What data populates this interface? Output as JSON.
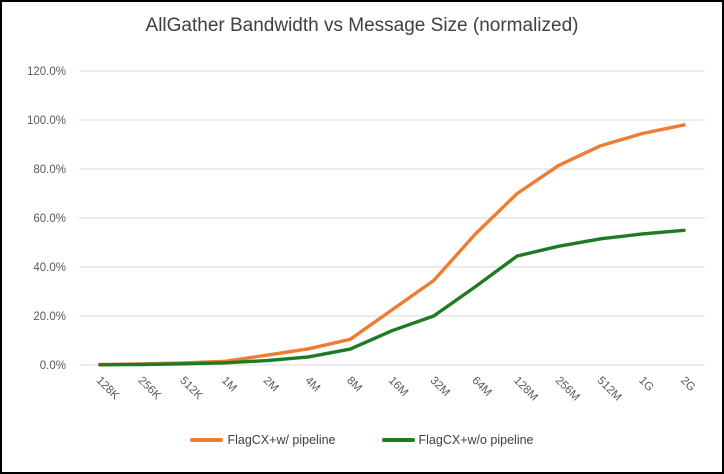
{
  "chart_data": {
    "type": "line",
    "title": "AllGather Bandwidth vs Message Size (normalized)",
    "categories": [
      "128K",
      "256K",
      "512K",
      "1M",
      "2M",
      "4M",
      "8M",
      "16M",
      "32M",
      "64M",
      "128M",
      "256M",
      "512M",
      "1G",
      "2G"
    ],
    "series": [
      {
        "name": "FlagCX+w/ pipeline",
        "color": "#ED7D31",
        "values": [
          0.2,
          0.4,
          0.8,
          1.5,
          4.0,
          6.6,
          10.5,
          22.5,
          34.5,
          53.5,
          70.0,
          81.5,
          89.5,
          94.5,
          98.0
        ]
      },
      {
        "name": "FlagCX+w/o pipeline",
        "color": "#1E7B24",
        "values": [
          0.1,
          0.2,
          0.5,
          0.9,
          1.8,
          3.3,
          6.5,
          14.0,
          20.0,
          32.0,
          44.5,
          48.5,
          51.5,
          53.5,
          55.0
        ]
      }
    ],
    "ylim": [
      0,
      120
    ],
    "ytick_step": 20,
    "ytick_labels": [
      "0.0%",
      "20.0%",
      "40.0%",
      "60.0%",
      "80.0%",
      "100.0%",
      "120.0%"
    ],
    "xlabel": "",
    "ylabel": "",
    "grid": true,
    "legend_position": "bottom",
    "x_labels_rotation_deg": 45
  },
  "style": {
    "gridline_color": "#D9D9D9",
    "axis_label_color": "#595959",
    "title_color": "#404040",
    "legend_text_color": "#404040",
    "frame_border_color": "#000000",
    "background_color": "#FFFFFF"
  }
}
